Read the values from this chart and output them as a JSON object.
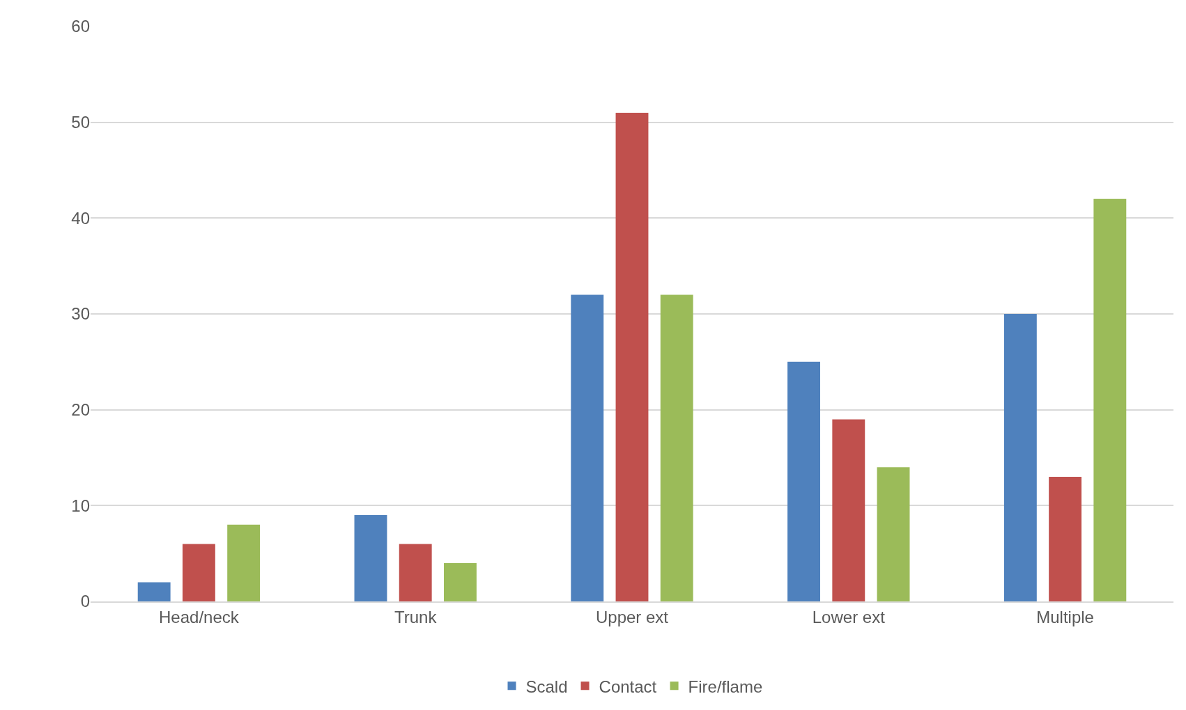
{
  "chart_data": {
    "type": "bar",
    "categories": [
      "Head/neck",
      "Trunk",
      "Upper ext",
      "Lower ext",
      "Multiple"
    ],
    "series": [
      {
        "name": "Scald",
        "color": "#4f81bd",
        "values": [
          2,
          9,
          32,
          25,
          30
        ]
      },
      {
        "name": "Contact",
        "color": "#c0504d",
        "values": [
          6,
          6,
          51,
          19,
          13
        ]
      },
      {
        "name": "Fire/flame",
        "color": "#9bbb59",
        "values": [
          8,
          4,
          32,
          14,
          42
        ]
      }
    ],
    "ylim": [
      0,
      60
    ],
    "yticks": [
      0,
      10,
      20,
      30,
      40,
      50,
      60
    ],
    "grid": "y",
    "legend": "bottom"
  }
}
